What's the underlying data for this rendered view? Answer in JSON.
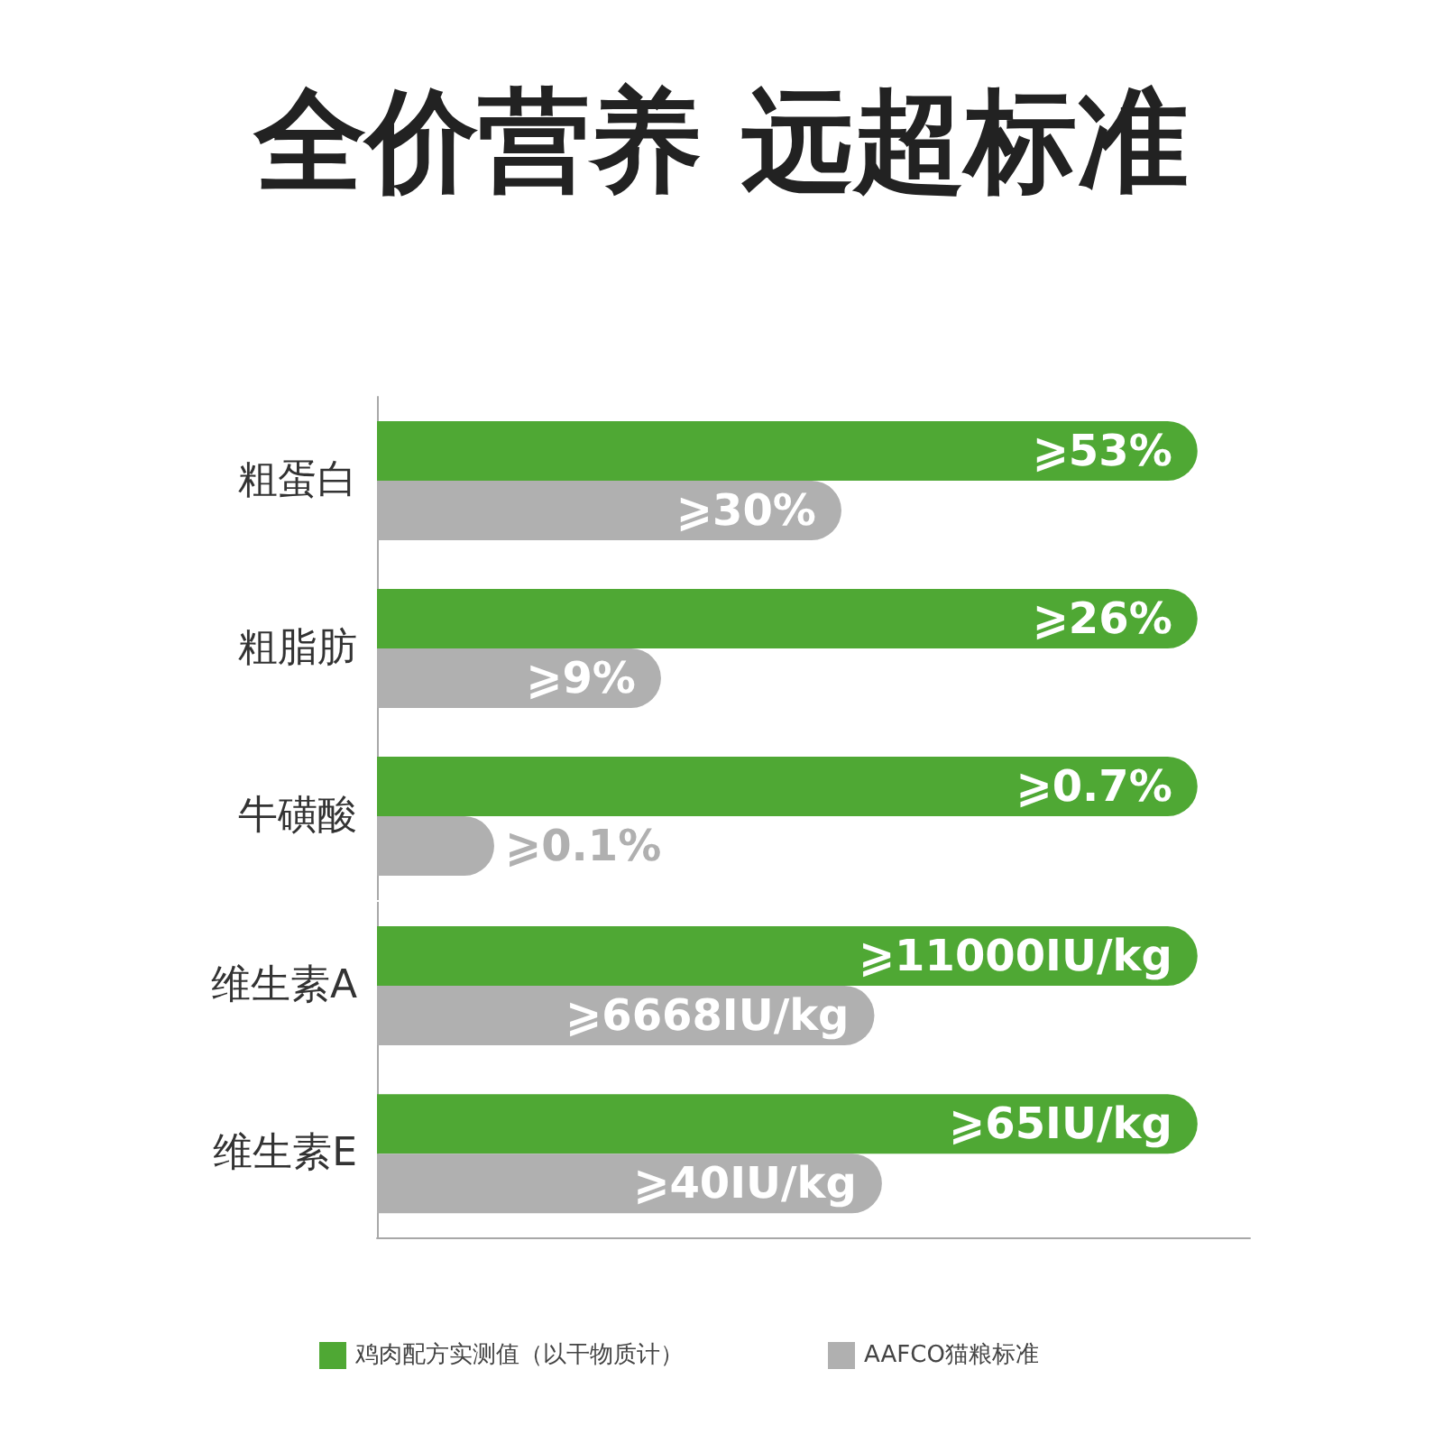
{
  "chart_data": [
    {
      "type": "bar",
      "orientation": "horizontal",
      "title": "全价营养 远超标准",
      "categories": [
        "粗蛋白"
      ],
      "series": [
        {
          "color": "#4fa834",
          "values": [
            53
          ],
          "value_labels": [
            "⩾53%"
          ]
        },
        {
          "color": "#b0b0b0",
          "values": [
            30
          ],
          "value_labels": [
            "⩾30%"
          ]
        }
      ],
      "tick_labels": "y"
    },
    {
      "type": "bar",
      "orientation": "horizontal",
      "categories": [
        "粗脂肪"
      ],
      "series": [
        {
          "color": "#4fa834",
          "values": [
            26
          ],
          "value_labels": [
            "⩾26%"
          ]
        },
        {
          "color": "#b0b0b0",
          "values": [
            9
          ],
          "value_labels": [
            "⩾9%"
          ]
        }
      ],
      "tick_labels": "y"
    },
    {
      "type": "bar",
      "orientation": "horizontal",
      "categories": [
        "牛磺酸"
      ],
      "series": [
        {
          "color": "#4fa834",
          "values": [
            0.7
          ],
          "value_labels": [
            "⩾0.7%"
          ]
        },
        {
          "color": "#b0b0b0",
          "values": [
            0.1
          ],
          "value_labels": [
            "⩾0.1%"
          ]
        }
      ],
      "tick_labels": "y"
    },
    {
      "type": "bar",
      "orientation": "horizontal",
      "categories": [
        "维生素A"
      ],
      "series": [
        {
          "color": "#4fa834",
          "values": [
            11000
          ],
          "value_labels": [
            "⩾11000IU/kg"
          ]
        },
        {
          "color": "#b0b0b0",
          "values": [
            6668
          ],
          "value_labels": [
            "⩾6668IU/kg"
          ]
        }
      ],
      "tick_labels": "y"
    },
    {
      "type": "bar",
      "orientation": "horizontal",
      "categories": [
        "维生素E"
      ],
      "series": [
        {
          "name": "鸡肉配方实测值（以干物质计）",
          "color": "#4fa834",
          "values": [
            65
          ],
          "value_labels": [
            "⩾65IU/kg"
          ]
        },
        {
          "name": "AAFCO猫粮标准",
          "color": "#b0b0b0",
          "values": [
            40
          ],
          "value_labels": [
            "⩾40IU/kg"
          ]
        }
      ],
      "legend": "bottom",
      "tick_labels": "y"
    }
  ]
}
